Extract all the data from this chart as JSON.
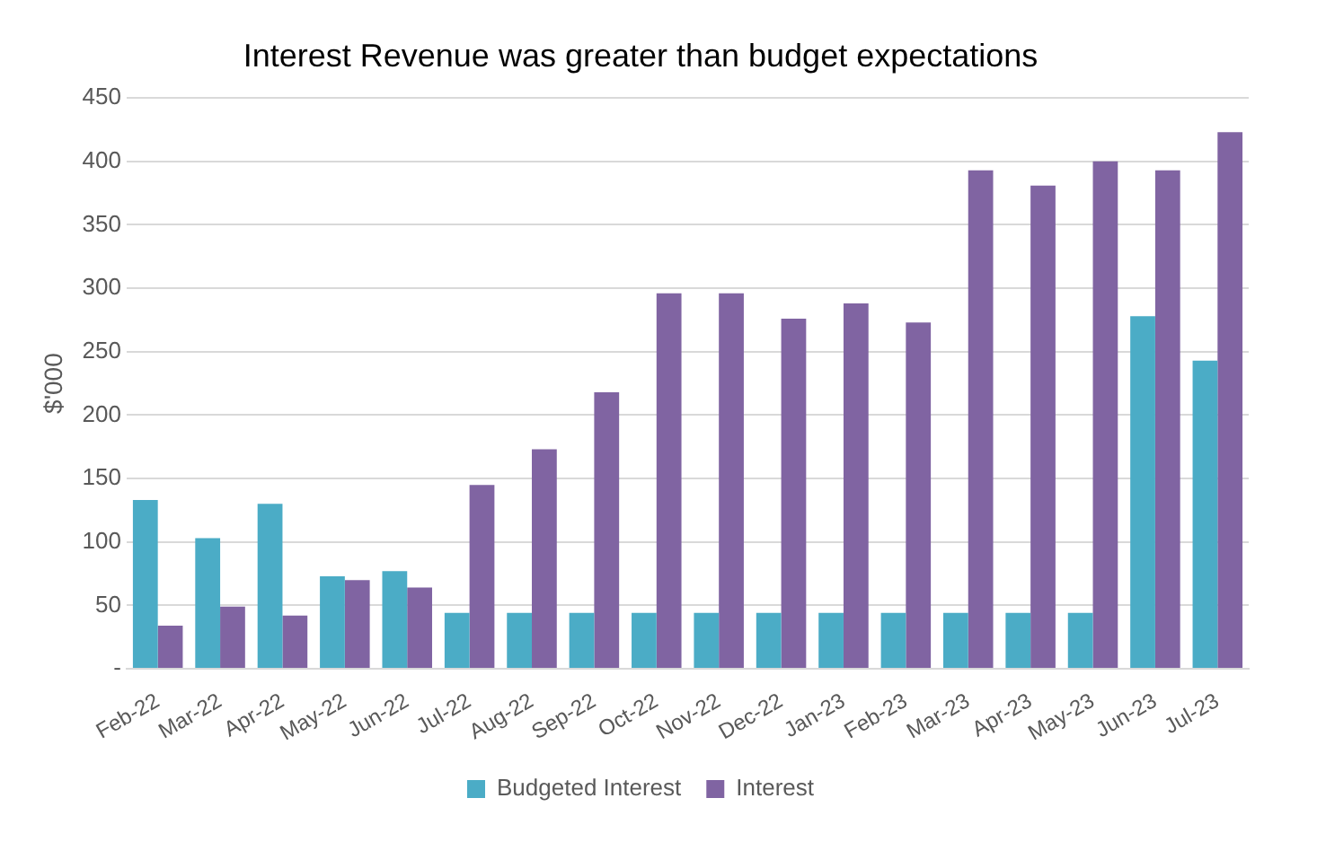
{
  "chart_data": {
    "type": "bar",
    "title": "Interest Revenue was greater than budget expectations",
    "ylabel": "$'000",
    "categories": [
      "Feb-22",
      "Mar-22",
      "Apr-22",
      "May-22",
      "Jun-22",
      "Jul-22",
      "Aug-22",
      "Sep-22",
      "Oct-22",
      "Nov-22",
      "Dec-22",
      "Jan-23",
      "Feb-23",
      "Mar-23",
      "Apr-23",
      "May-23",
      "Jun-23",
      "Jul-23"
    ],
    "series": [
      {
        "name": "Budgeted Interest",
        "color": "#4bacc6",
        "values": [
          133,
          103,
          130,
          73,
          77,
          44,
          44,
          44,
          44,
          44,
          44,
          44,
          44,
          44,
          44,
          44,
          278,
          243
        ]
      },
      {
        "name": "Interest",
        "color": "#8064a2",
        "values": [
          34,
          49,
          42,
          70,
          64,
          145,
          173,
          218,
          296,
          296,
          276,
          288,
          273,
          393,
          381,
          400,
          393,
          423
        ]
      }
    ],
    "ylim": [
      0,
      450
    ],
    "yticks": [
      {
        "value": 0,
        "label": "-"
      },
      50,
      100,
      150,
      200,
      250,
      300,
      350,
      400,
      450
    ],
    "grid": "y",
    "legend": "bottom"
  }
}
